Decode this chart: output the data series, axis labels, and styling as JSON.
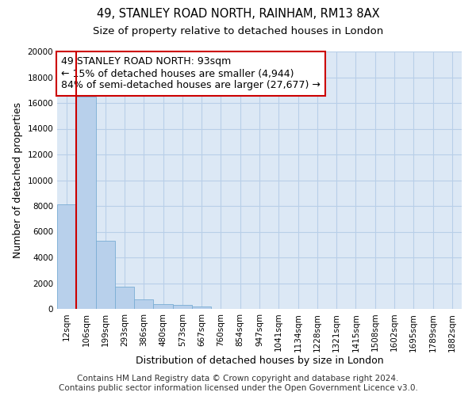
{
  "title": "49, STANLEY ROAD NORTH, RAINHAM, RM13 8AX",
  "subtitle": "Size of property relative to detached houses in London",
  "xlabel": "Distribution of detached houses by size in London",
  "ylabel": "Number of detached properties",
  "categories": [
    "12sqm",
    "106sqm",
    "199sqm",
    "293sqm",
    "386sqm",
    "480sqm",
    "573sqm",
    "667sqm",
    "760sqm",
    "854sqm",
    "947sqm",
    "1041sqm",
    "1134sqm",
    "1228sqm",
    "1321sqm",
    "1415sqm",
    "1508sqm",
    "1602sqm",
    "1695sqm",
    "1789sqm",
    "1882sqm"
  ],
  "values": [
    8100,
    16500,
    5300,
    1750,
    750,
    380,
    280,
    200,
    0,
    0,
    0,
    0,
    0,
    0,
    0,
    0,
    0,
    0,
    0,
    0,
    0
  ],
  "bar_color": "#b8d0eb",
  "bar_edge_color": "#7aadd4",
  "highlight_color": "#cc0000",
  "annotation_line1": "49 STANLEY ROAD NORTH: 93sqm",
  "annotation_line2": "← 15% of detached houses are smaller (4,944)",
  "annotation_line3": "84% of semi-detached houses are larger (27,677) →",
  "annotation_box_color": "#ffffff",
  "annotation_box_edge": "#cc0000",
  "ylim": [
    0,
    20000
  ],
  "yticks": [
    0,
    2000,
    4000,
    6000,
    8000,
    10000,
    12000,
    14000,
    16000,
    18000,
    20000
  ],
  "footer1": "Contains HM Land Registry data © Crown copyright and database right 2024.",
  "footer2": "Contains public sector information licensed under the Open Government Licence v3.0.",
  "bg_color": "#ffffff",
  "plot_bg_color": "#dce8f5",
  "grid_color": "#b8cfe8",
  "title_fontsize": 10.5,
  "subtitle_fontsize": 9.5,
  "axis_label_fontsize": 9,
  "tick_fontsize": 7.5,
  "annotation_fontsize": 9,
  "footer_fontsize": 7.5,
  "red_line_x": 0.5
}
